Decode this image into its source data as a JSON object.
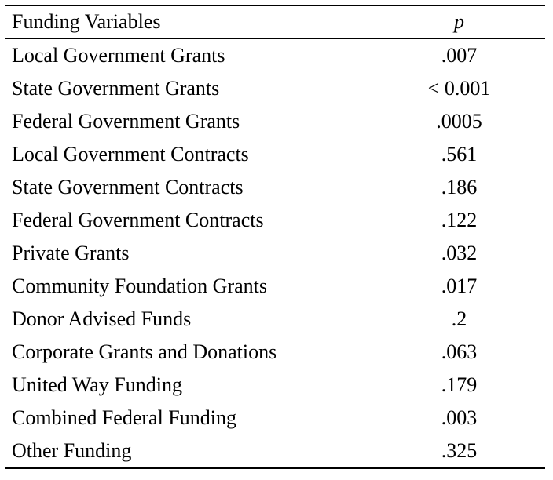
{
  "table": {
    "headers": {
      "variable": "Funding Variables",
      "p": "p"
    },
    "rows": [
      {
        "variable": "Local Government Grants",
        "p": ".007"
      },
      {
        "variable": "State Government Grants",
        "p": "< 0.001"
      },
      {
        "variable": "Federal Government Grants",
        "p": ".0005"
      },
      {
        "variable": "Local Government Contracts",
        "p": ".561"
      },
      {
        "variable": "State Government Contracts",
        "p": ".186"
      },
      {
        "variable": "Federal Government Contracts",
        "p": ".122"
      },
      {
        "variable": "Private Grants",
        "p": ".032"
      },
      {
        "variable": "Community Foundation Grants",
        "p": ".017"
      },
      {
        "variable": "Donor Advised Funds",
        "p": ".2"
      },
      {
        "variable": "Corporate Grants and Donations",
        "p": ".063"
      },
      {
        "variable": "United Way Funding",
        "p": ".179"
      },
      {
        "variable": "Combined Federal Funding",
        "p": ".003"
      },
      {
        "variable": "Other Funding",
        "p": ".325"
      }
    ]
  }
}
